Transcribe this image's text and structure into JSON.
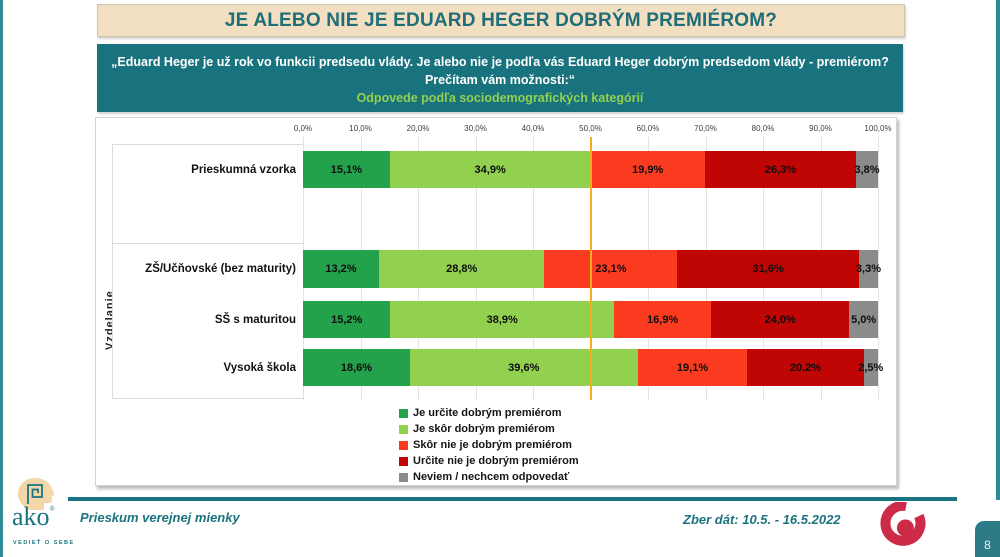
{
  "slide": {
    "title": "JE ALEBO NIE JE EDUARD HEGER DOBRÝM PREMIÉROM?",
    "subtitle": {
      "line1": "„Eduard Heger je už rok vo funkcii predsedu vlády. Je alebo nie je podľa vás Eduard Heger dobrým predsedom vlády - premiérom?",
      "line2": "Prečítam vám možnosti:“",
      "line3": "Odpovede podľa sociodemografických kategórií"
    },
    "page_number": "8"
  },
  "footer": {
    "left_text": "Prieskum verejnej mienky",
    "right_text": "Zber dát: 10.5. - 16.5.2022",
    "logo_text": "ako",
    "logo_tagline": "VEDIEŤ O SEBE"
  },
  "colors": {
    "teal": "#1A7480",
    "title_bg": "#F2DFC2",
    "subtitle_bg": "#19737E",
    "accent_green_text": "#92D050",
    "reference_line": "#F5AC1F",
    "spiral_red": "#CD2A47"
  },
  "chart_data": {
    "type": "bar",
    "stacked": true,
    "orientation": "horizontal",
    "x_axis": {
      "ticks": [
        "0,0%",
        "10,0%",
        "20,0%",
        "30,0%",
        "40,0%",
        "50,0%",
        "60,0%",
        "70,0%",
        "80,0%",
        "90,0%",
        "100,0%"
      ],
      "min": 0,
      "max": 100,
      "grid": true
    },
    "group_label": "Vzdelanie",
    "categories": [
      "Prieskumná vzorka",
      "ZŠ/Učňovské (bez maturity)",
      "SŠ s maturitou",
      "Vysoká škola"
    ],
    "series": [
      {
        "name": "Je určite dobrým premiérom",
        "color": "#23A14B",
        "values": [
          15.1,
          13.2,
          15.2,
          18.6
        ],
        "labels": [
          "15,1%",
          "13,2%",
          "15,2%",
          "18,6%"
        ]
      },
      {
        "name": "Je skôr dobrým premiérom",
        "color": "#92D050",
        "values": [
          34.9,
          28.8,
          38.9,
          39.6
        ],
        "labels": [
          "34,9%",
          "28,8%",
          "38,9%",
          "39,6%"
        ]
      },
      {
        "name": "Skôr nie je dobrým premiérom",
        "color": "#FA3B1F",
        "values": [
          19.9,
          23.1,
          16.9,
          19.1
        ],
        "labels": [
          "19,9%",
          "23,1%",
          "16,9%",
          "19,1%"
        ]
      },
      {
        "name": "Určite nie je dobrým premiérom",
        "color": "#C00505",
        "values": [
          26.3,
          31.6,
          24.0,
          20.2
        ],
        "labels": [
          "26,3%",
          "31,6%",
          "24,0%",
          "20,2%"
        ]
      },
      {
        "name": "Neviem / nechcem odpovedať",
        "color": "#8B8B8B",
        "values": [
          3.8,
          3.3,
          5.0,
          2.5
        ],
        "labels": [
          "3,8%",
          "3,3%",
          "5,0%",
          "2,5%"
        ]
      }
    ],
    "reference_line": {
      "value": 50,
      "color": "#F5AC1F"
    },
    "legend_position": "bottom"
  }
}
